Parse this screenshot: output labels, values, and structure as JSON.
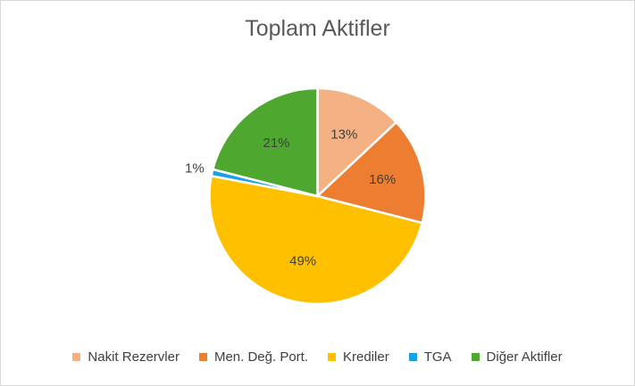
{
  "chart_data": {
    "type": "pie",
    "title": "Toplam Aktifler",
    "legend_position": "bottom",
    "slices": [
      {
        "label": "Nakit Rezervler",
        "value": 13,
        "display": "13%",
        "color": "#f4b183"
      },
      {
        "label": "Men. Değ. Port.",
        "value": 16,
        "display": "16%",
        "color": "#ed7d31"
      },
      {
        "label": "Krediler",
        "value": 49,
        "display": "49%",
        "color": "#ffc000"
      },
      {
        "label": "TGA",
        "value": 1,
        "display": "1%",
        "color": "#1ba1e2"
      },
      {
        "label": "Diğer Aktifler",
        "value": 21,
        "display": "21%",
        "color": "#4ea72e"
      }
    ]
  }
}
